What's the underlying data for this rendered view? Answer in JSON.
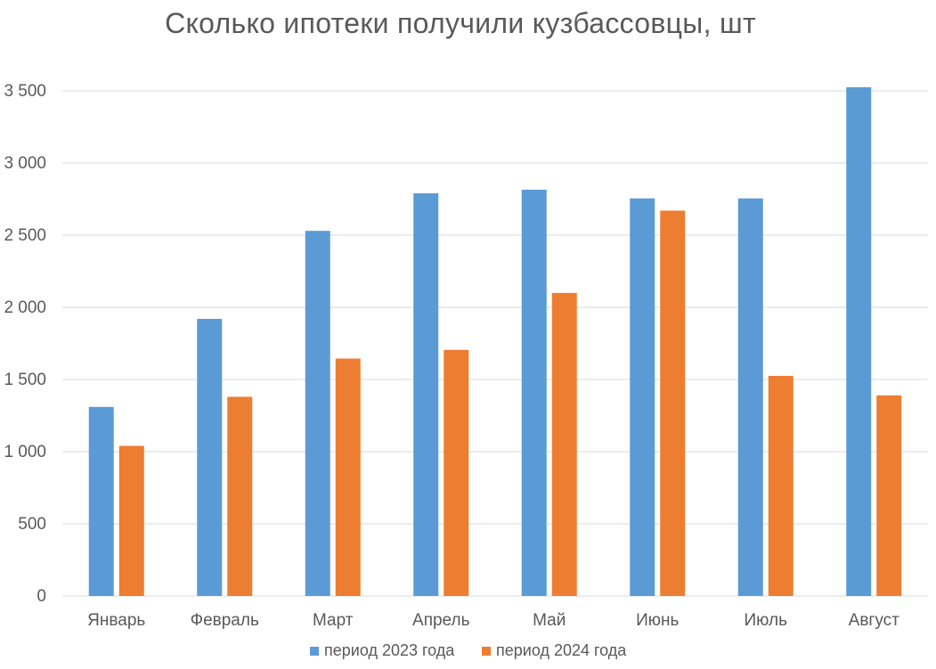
{
  "chart_data": {
    "type": "bar",
    "title": "Сколько ипотеки получили кузбассовцы,  шт",
    "categories": [
      "Январь",
      "Февраль",
      "Март",
      "Апрель",
      "Май",
      "Июнь",
      "Июль",
      "Август"
    ],
    "series": [
      {
        "name": "период 2023 года",
        "color": "#5B9BD5",
        "values": [
          1310,
          1920,
          2530,
          2790,
          2815,
          2755,
          2755,
          3525
        ]
      },
      {
        "name": "период 2024 года",
        "color": "#ED7D31",
        "values": [
          1040,
          1380,
          1645,
          1705,
          2100,
          2670,
          1525,
          1390
        ]
      }
    ],
    "ylim": [
      0,
      3500
    ],
    "yticks": [
      0,
      500,
      1000,
      1500,
      2000,
      2500,
      3000,
      3500
    ],
    "ytick_labels": [
      "0",
      "500",
      "1 000",
      "1 500",
      "2 000",
      "2 500",
      "3 000",
      "3 500"
    ],
    "grid": true,
    "legend_position": "bottom",
    "gridline_color": "#D9D9D9"
  }
}
